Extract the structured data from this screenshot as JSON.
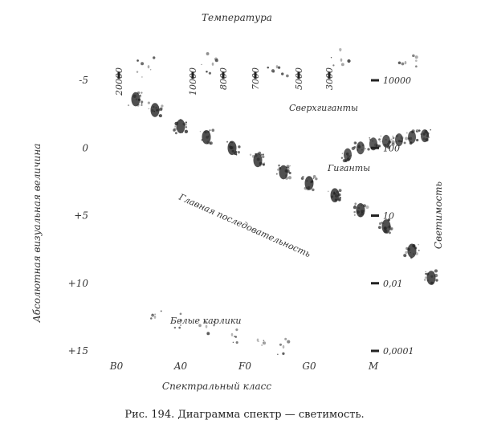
{
  "chart_data": {
    "type": "scatter",
    "title": "",
    "top_axis_label": "Температура",
    "top_ticks": [
      "20000",
      "10000",
      "8000",
      "7000",
      "5000",
      "3000"
    ],
    "xlabel": "Спектральный класс",
    "x_categories": [
      "B0",
      "A0",
      "F0",
      "G0",
      "M"
    ],
    "ylabel": "Абсолютная визуальная величина",
    "y_ticks": [
      "-5",
      "0",
      "+5",
      "+10",
      "+15"
    ],
    "ylim": [
      -5,
      15
    ],
    "right_axis_label": "Светимость",
    "right_ticks": [
      "10000",
      "100",
      "10",
      "0,01",
      "0,0001"
    ],
    "annotations": {
      "supergiants": "Сверхгиганты",
      "giants": "Гиганты",
      "main_sequence": "Главная последовательность",
      "white_dwarfs": "Белые карлики"
    },
    "series": [
      {
        "region": "main_sequence",
        "points": [
          [
            0.3,
            -3.6
          ],
          [
            0.6,
            -2.8
          ],
          [
            1.0,
            -1.6
          ],
          [
            1.4,
            -0.8
          ],
          [
            1.8,
            0.0
          ],
          [
            2.2,
            0.9
          ],
          [
            2.6,
            1.8
          ],
          [
            3.0,
            2.6
          ],
          [
            3.4,
            3.5
          ],
          [
            3.8,
            4.6
          ],
          [
            4.2,
            5.8
          ],
          [
            4.6,
            7.6
          ],
          [
            4.9,
            9.6
          ]
        ]
      },
      {
        "region": "giants",
        "points": [
          [
            3.6,
            0.5
          ],
          [
            3.8,
            0.0
          ],
          [
            4.0,
            -0.3
          ],
          [
            4.2,
            -0.5
          ],
          [
            4.4,
            -0.6
          ],
          [
            4.6,
            -0.8
          ],
          [
            4.8,
            -0.9
          ]
        ]
      },
      {
        "region": "supergiants",
        "points": [
          [
            0.5,
            -6.0
          ],
          [
            1.5,
            -6.2
          ],
          [
            2.5,
            -6.0
          ],
          [
            3.5,
            -6.5
          ],
          [
            4.5,
            -6.3
          ]
        ]
      },
      {
        "region": "white_dwarfs",
        "points": [
          [
            0.6,
            12.5
          ],
          [
            1.0,
            12.8
          ],
          [
            1.4,
            13.2
          ],
          [
            1.8,
            13.8
          ],
          [
            2.2,
            14.2
          ],
          [
            2.6,
            14.7
          ]
        ]
      }
    ]
  },
  "caption": "Рис. 194. Диаграмма спектр — светимость."
}
